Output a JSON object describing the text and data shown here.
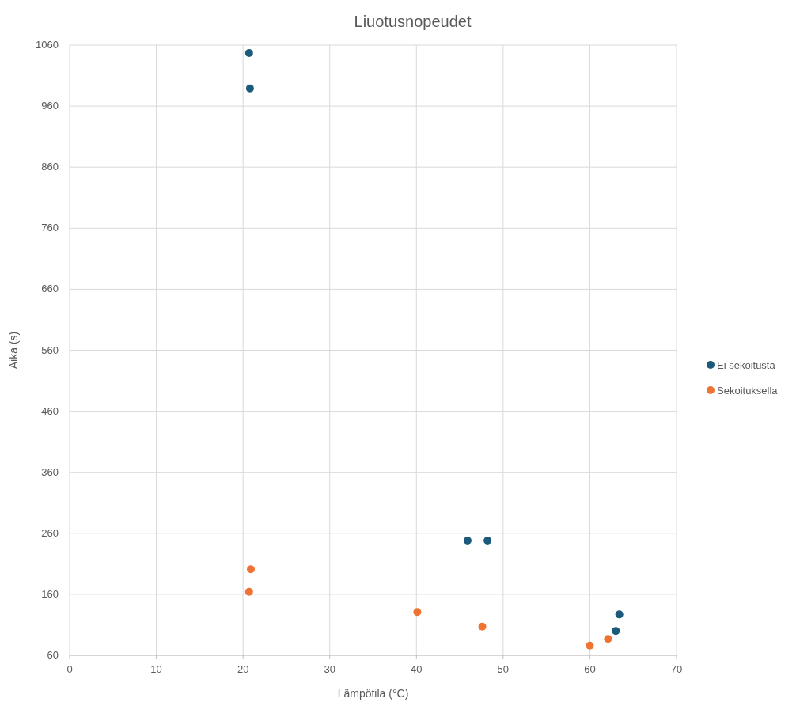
{
  "chart_data": {
    "type": "scatter",
    "title": "Liuotusnopeudet",
    "xlabel": "Lämpötila (°C)",
    "ylabel": "Aika (s)",
    "xlim": [
      0,
      70
    ],
    "xticks": [
      0,
      10,
      20,
      30,
      40,
      50,
      60,
      70
    ],
    "ylim": [
      60,
      1060
    ],
    "yticks": [
      60,
      160,
      260,
      360,
      460,
      560,
      660,
      760,
      860,
      960,
      1060
    ],
    "grid": true,
    "legend": "right",
    "marker": "circle",
    "series": [
      {
        "name": "Ei sekoitusta",
        "color": "#1b5a7a",
        "x": [
          20.7,
          20.8,
          45.9,
          48.2,
          63.0,
          63.4
        ],
        "values": [
          1047,
          989,
          248,
          248,
          100,
          127
        ]
      },
      {
        "name": "Sekoituksella",
        "color": "#ef7434",
        "x": [
          20.9,
          20.7,
          40.1,
          47.6,
          60.0,
          62.1
        ],
        "values": [
          201,
          164,
          131,
          107,
          76,
          87
        ]
      }
    ]
  }
}
